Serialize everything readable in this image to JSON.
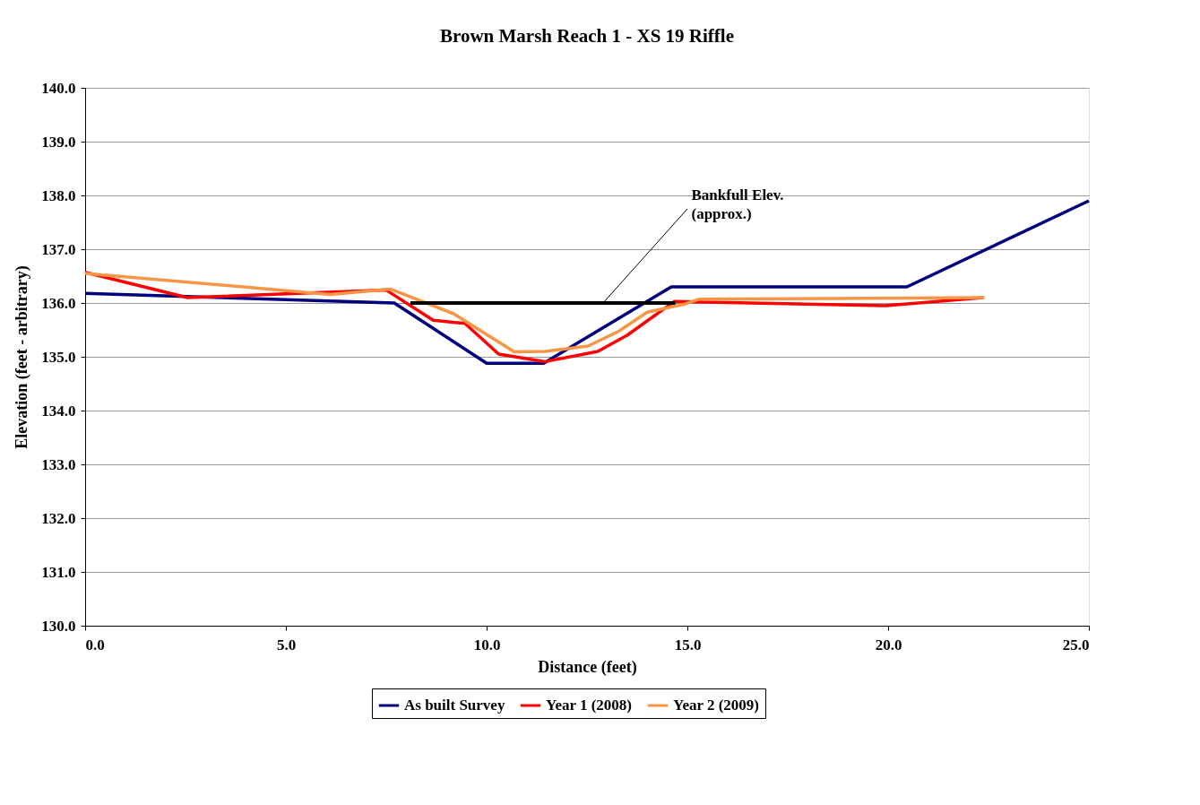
{
  "chart_data": {
    "type": "line",
    "title": "Brown Marsh Reach 1 - XS 19 Riffle",
    "xlabel": "Distance (feet)",
    "ylabel": "Elevation (feet - arbitrary)",
    "xlim": [
      0,
      25
    ],
    "ylim": [
      130,
      140
    ],
    "xticks": [
      {
        "value": 0,
        "label": "0.0"
      },
      {
        "value": 5,
        "label": "5.0"
      },
      {
        "value": 10,
        "label": "10.0"
      },
      {
        "value": 15,
        "label": "15.0"
      },
      {
        "value": 20,
        "label": "20.0"
      },
      {
        "value": 25,
        "label": "25.0"
      }
    ],
    "yticks": [
      {
        "value": 130,
        "label": "130.0"
      },
      {
        "value": 131,
        "label": "131.0"
      },
      {
        "value": 132,
        "label": "132.0"
      },
      {
        "value": 133,
        "label": "133.0"
      },
      {
        "value": 134,
        "label": "134.0"
      },
      {
        "value": 135,
        "label": "135.0"
      },
      {
        "value": 136,
        "label": "136.0"
      },
      {
        "value": 137,
        "label": "137.0"
      },
      {
        "value": 138,
        "label": "138.0"
      },
      {
        "value": 139,
        "label": "139.0"
      },
      {
        "value": 140,
        "label": "140.0"
      }
    ],
    "grid": "y",
    "legend": "bottom",
    "marker": "none",
    "line_style": "solid",
    "series": [
      {
        "name": "As built Survey",
        "color": "#000080",
        "x": [
          0,
          7.7,
          10.0,
          11.42,
          14.6,
          20.47,
          25
        ],
        "values": [
          136.18,
          136.0,
          134.88,
          134.88,
          136.3,
          136.3,
          137.9
        ]
      },
      {
        "name": "Year 1 (2008)",
        "color": "#ff0000",
        "x": [
          0,
          2.55,
          7.5,
          8.67,
          9.46,
          10.3,
          11.46,
          12.77,
          13.5,
          14.68,
          19.93,
          22.36
        ],
        "values": [
          136.57,
          136.1,
          136.24,
          135.68,
          135.62,
          135.05,
          134.91,
          135.1,
          135.4,
          136.03,
          135.95,
          136.1
        ]
      },
      {
        "name": "Year 2 (2009)",
        "color": "#f79646",
        "x": [
          0,
          6.1,
          7.6,
          9.18,
          10.69,
          11.46,
          12.53,
          13.3,
          14.0,
          14.94,
          15.28,
          22.4
        ],
        "values": [
          136.55,
          136.16,
          136.26,
          135.8,
          135.09,
          135.1,
          135.2,
          135.48,
          135.83,
          135.98,
          136.07,
          136.1
        ]
      },
      {
        "color": "#000000",
        "x": [
          8.1,
          14.7
        ],
        "values": [
          136.0,
          136.0
        ]
      }
    ],
    "annotations": [
      {
        "text": "Bankfull Elev.\n(approx.)",
        "x": 12.9,
        "y": 136.0
      }
    ]
  }
}
